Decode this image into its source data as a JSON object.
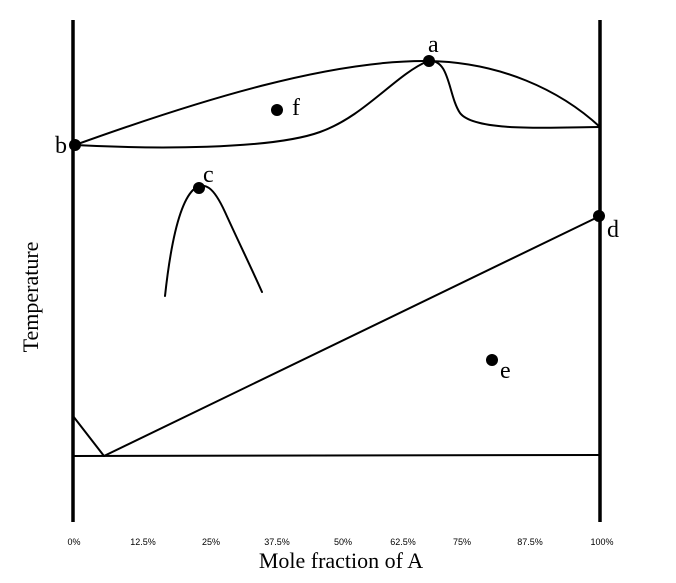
{
  "axes": {
    "y_label": "Temperature",
    "x_label": "Mole fraction of A",
    "x_ticks": [
      "0%",
      "12.5%",
      "25%",
      "37.5%",
      "50%",
      "62.5%",
      "75%",
      "87.5%",
      "100%"
    ]
  },
  "points": {
    "a": "a",
    "b": "b",
    "c": "c",
    "d": "d",
    "e": "e",
    "f": "f"
  }
}
